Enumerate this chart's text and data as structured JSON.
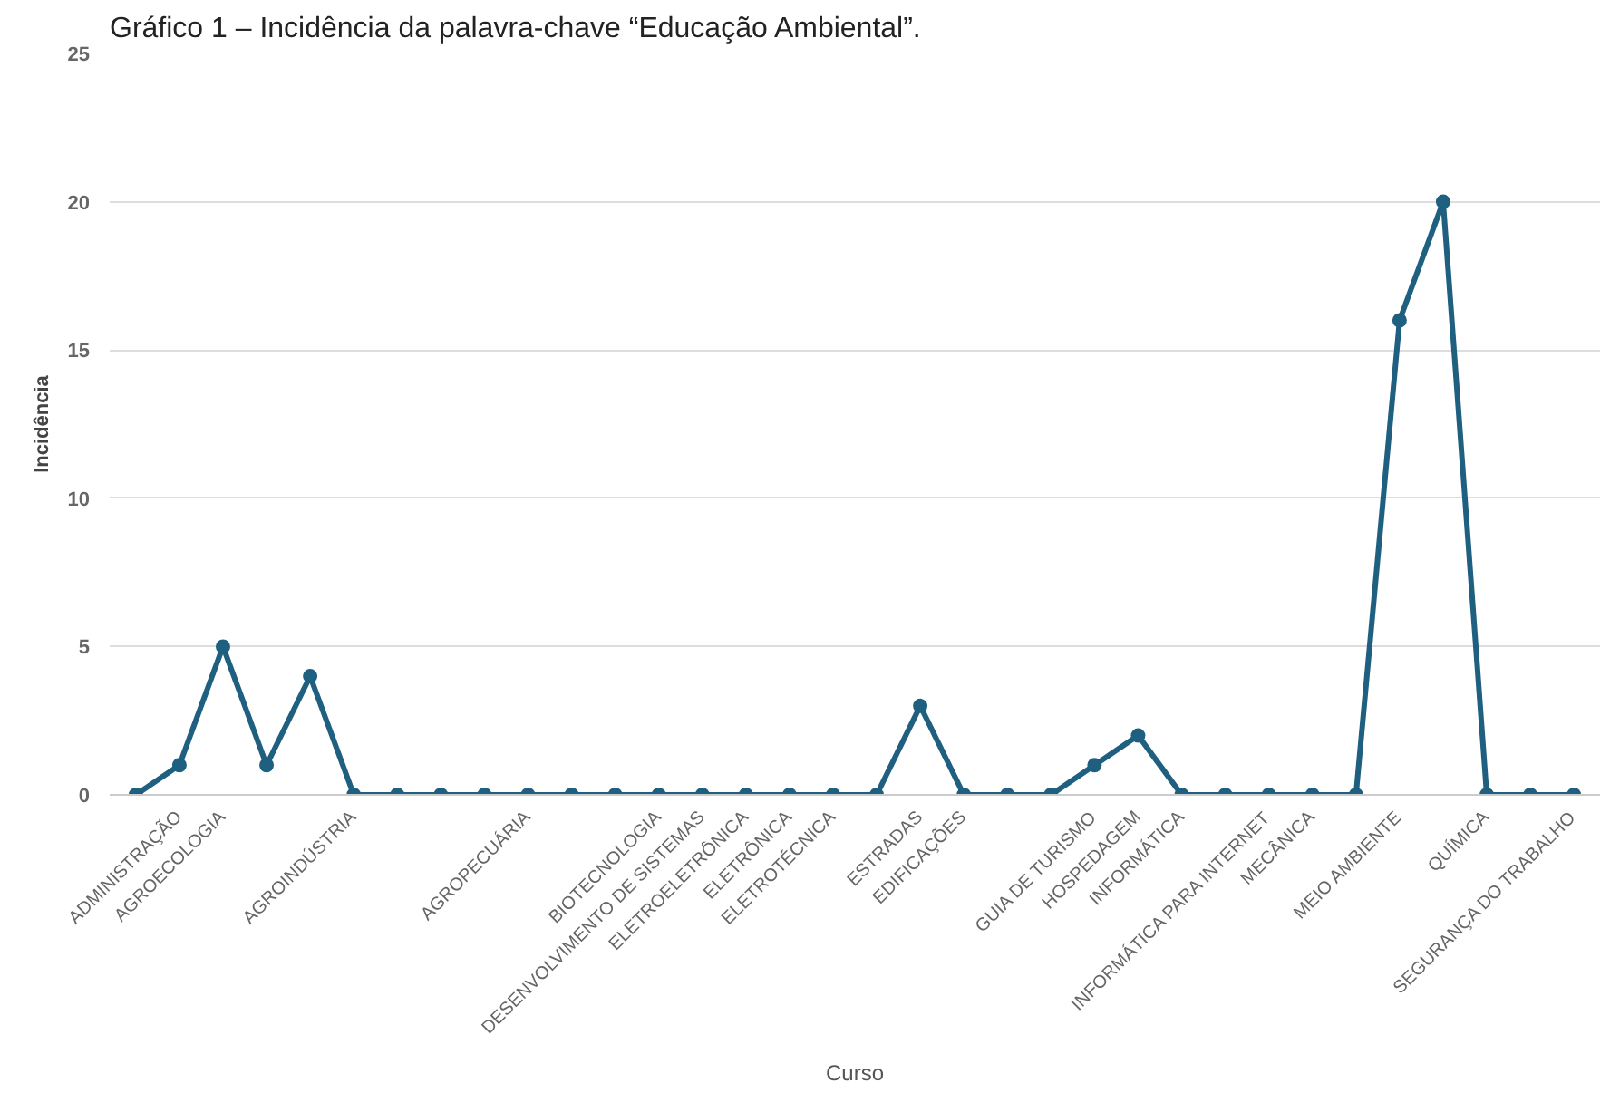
{
  "chart_data": {
    "type": "line",
    "title": "Gráfico 1 – Incidência da palavra-chave “Educação Ambiental”.",
    "xlabel": "Curso",
    "ylabel": "Incidência",
    "categories": [
      null,
      "ADMINISTRAÇÃO",
      "AGROECOLOGIA",
      null,
      null,
      "AGROINDÚSTRIA",
      null,
      null,
      null,
      "AGROPECUÁRIA",
      null,
      null,
      "BIOTECNOLOGIA",
      "DESENVOLVIMENTO DE SISTEMAS",
      "ELETROELETRÔNICA",
      "ELETRÔNICA",
      "ELETROTÉCNICA",
      null,
      "ESTRADAS",
      "EDIFICAÇÕES",
      null,
      null,
      "GUIA DE TURISMO",
      "HOSPEDAGEM",
      "INFORMÁTICA",
      null,
      "INFORMÁTICA PARA INTERNET",
      "MECÂNICA",
      null,
      "MEIO AMBIENTE",
      null,
      "QUÍMICA",
      null,
      "SEGURANÇA DO TRABALHO"
    ],
    "series": [
      {
        "color": "#1f5f7f",
        "values": [
          0,
          1,
          5,
          1,
          4,
          0,
          0,
          0,
          0,
          0,
          0,
          0,
          0,
          0,
          0,
          0,
          0,
          0,
          3,
          0,
          0,
          0,
          1,
          2,
          0,
          0,
          0,
          0,
          0,
          16,
          20,
          0,
          0,
          0
        ]
      }
    ],
    "ylim": [
      0,
      25
    ],
    "yticks": [
      0,
      5,
      10,
      15,
      20,
      25
    ],
    "grid": "y",
    "marker": "circle",
    "line_style": "solid"
  }
}
